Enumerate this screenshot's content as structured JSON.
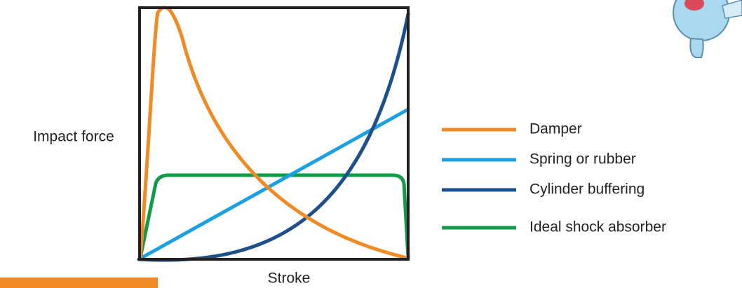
{
  "axes": {
    "x_label": "Stroke",
    "y_label": "Impact force"
  },
  "legend": [
    {
      "label": "Damper"
    },
    {
      "label": "Spring or rubber"
    },
    {
      "label": "Cylinder buffering"
    },
    {
      "label": "Ideal shock absorber"
    }
  ]
}
